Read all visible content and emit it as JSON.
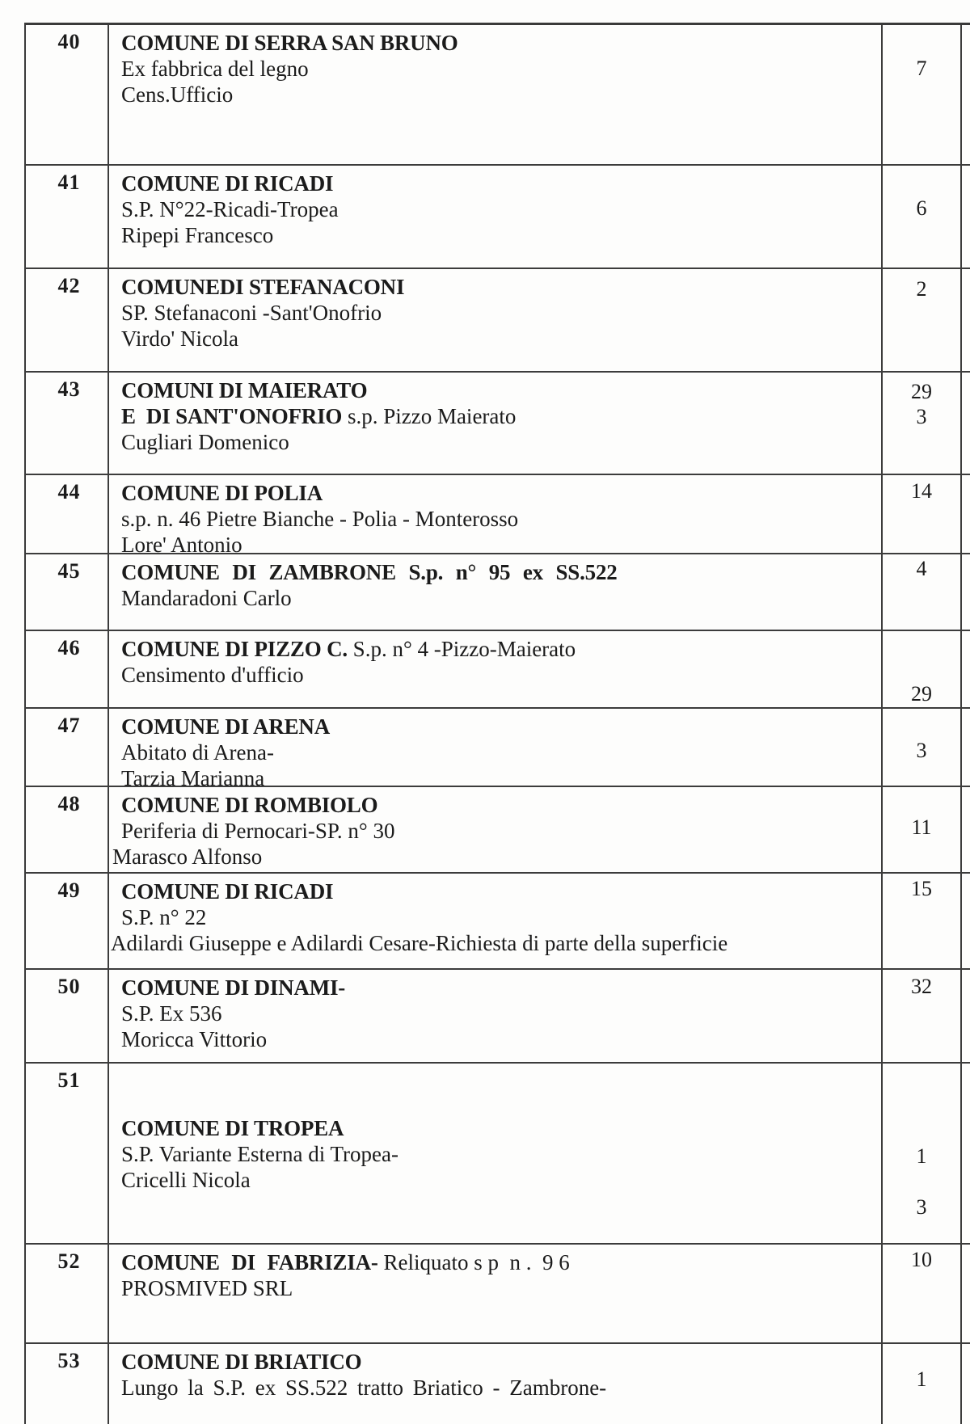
{
  "colors": {
    "page_background": "#fdfdfc",
    "ink": "#1b1b1b",
    "table_border": "#3c3c3c"
  },
  "table": {
    "rows": [
      {
        "num": "40",
        "lines": [
          {
            "b": "COMUNE DI SERRA SAN BRUNO",
            "r": ""
          },
          {
            "b": "",
            "r": "Ex fabbrica del legno"
          },
          {
            "b": "",
            "r": "Cens.Ufficio"
          }
        ],
        "values": [
          "7"
        ]
      },
      {
        "num": "41",
        "lines": [
          {
            "b": "COMUNE DI RICADI",
            "r": ""
          },
          {
            "b": "",
            "r": "S.P. N°22-Ricadi-Tropea"
          },
          {
            "b": "",
            "r": "Ripepi Francesco"
          }
        ],
        "values": [
          "6"
        ]
      },
      {
        "num": "42",
        "lines": [
          {
            "b": "COMUNEDI STEFANACONI",
            "r": ""
          },
          {
            "b": "",
            "r": "SP. Stefanaconi -Sant'Onofrio"
          },
          {
            "b": "",
            "r": "Virdo' Nicola"
          }
        ],
        "values": [
          "2"
        ]
      },
      {
        "num": "43",
        "lines": [
          {
            "b": "COMUNI DI MAIERATO",
            "r": ""
          },
          {
            "b": "E  DI SANT'ONOFRIO",
            "r": " s.p. Pizzo Maierato"
          },
          {
            "b": "",
            "r": "Cugliari Domenico"
          }
        ],
        "values": [
          "29",
          "3"
        ]
      },
      {
        "num": "44",
        "lines": [
          {
            "b": "COMUNE DI POLIA",
            "r": ""
          },
          {
            "b": "",
            "r": "s.p. n. 46 Pietre Bianche - Polia - Monterosso"
          },
          {
            "b": "",
            "r": "Lore' Antonio"
          }
        ],
        "values": [
          "14"
        ]
      },
      {
        "num": "45",
        "lines": [
          {
            "b": "COMUNE DI ZAMBRONE S.p. n° 95 ex SS.522",
            "r": ""
          },
          {
            "b": "",
            "r": "Mandaradoni Carlo"
          }
        ],
        "values": [
          "4"
        ]
      },
      {
        "num": "46",
        "lines": [
          {
            "b": "COMUNE DI PIZZO C.",
            "r": " S.p. n° 4 -Pizzo-Maierato"
          },
          {
            "b": "",
            "r": "Censimento d'ufficio"
          }
        ],
        "values": [
          "29"
        ]
      },
      {
        "num": "47",
        "lines": [
          {
            "b": "COMUNE DI ARENA",
            "r": ""
          },
          {
            "b": "",
            "r": "Abitato di Arena-"
          },
          {
            "b": "",
            "r": "Tarzia Marianna"
          }
        ],
        "values": [
          "3"
        ]
      },
      {
        "num": "48",
        "lines": [
          {
            "b": "COMUNE DI ROMBIOLO",
            "r": ""
          },
          {
            "b": "",
            "r": "Periferia di Pernocari-SP. n° 30"
          },
          {
            "b": "",
            "r": "Marasco Alfonso"
          }
        ],
        "values": [
          "11"
        ]
      },
      {
        "num": "49",
        "lines": [
          {
            "b": "COMUNE DI RICADI",
            "r": ""
          },
          {
            "b": "",
            "r": "S.P. n° 22"
          },
          {
            "b": "",
            "r": "Adilardi Giuseppe e Adilardi Cesare-Richiesta di parte della superficie"
          }
        ],
        "values": [
          "15"
        ]
      },
      {
        "num": "50",
        "lines": [
          {
            "b": "COMUNE DI DINAMI-",
            "r": ""
          },
          {
            "b": "",
            "r": "S.P. Ex 536"
          },
          {
            "b": "",
            "r": "Moricca Vittorio"
          }
        ],
        "values": [
          "32"
        ]
      },
      {
        "num": "51",
        "lines": [
          {
            "b": "COMUNE DI TROPEA",
            "r": ""
          },
          {
            "b": "",
            "r": "S.P. Variante Esterna di Tropea-"
          },
          {
            "b": "",
            "r": "Cricelli Nicola"
          }
        ],
        "values": [
          "1",
          "3"
        ]
      },
      {
        "num": "52",
        "lines": [
          {
            "b": "COMUNE DI FABRIZIA-",
            "r": " Reliquato s p  n .  9 6"
          },
          {
            "b": "",
            "r": "PROSMIVED SRL"
          }
        ],
        "values": [
          "10"
        ]
      },
      {
        "num": "53",
        "lines": [
          {
            "b": "COMUNE DI BRIATICO",
            "r": ""
          },
          {
            "b": "",
            "r": "Lungo la S.P. ex SS.522 tratto Briatico - Zambrone-"
          }
        ],
        "values": [
          "1"
        ]
      }
    ]
  }
}
